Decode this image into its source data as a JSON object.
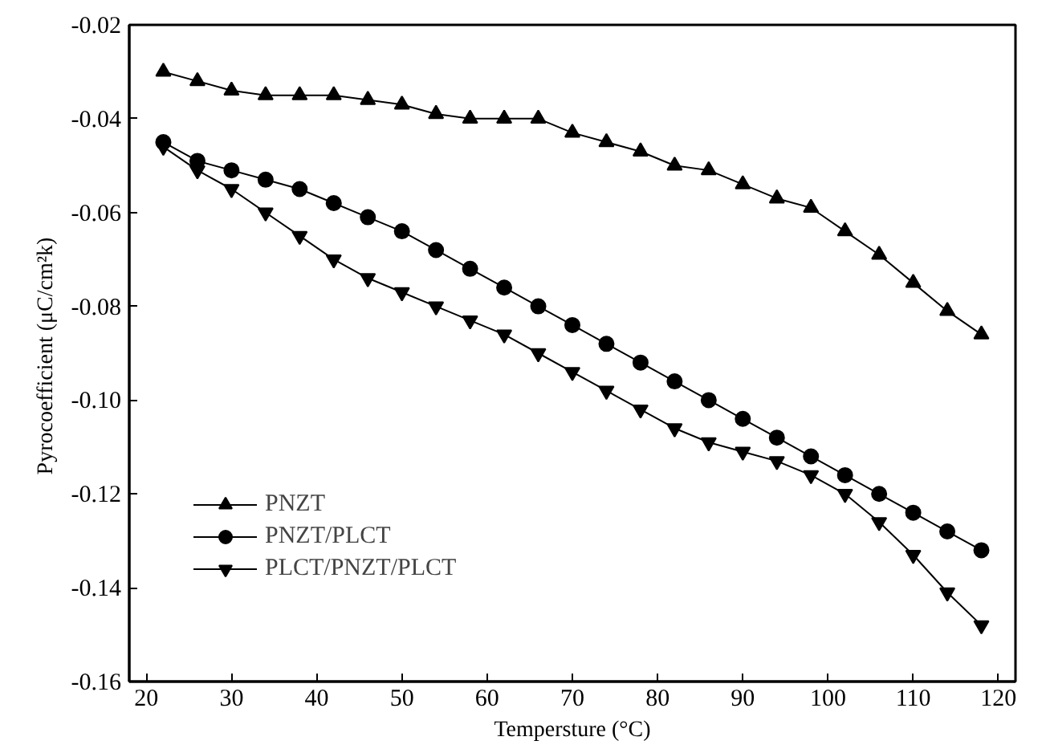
{
  "chart_data": {
    "type": "line",
    "xlabel": "Tempersture (°C)",
    "ylabel": "Pyrocoefficient  (μC/cm²k)",
    "x": [
      22,
      26,
      30,
      34,
      38,
      42,
      46,
      50,
      54,
      58,
      62,
      66,
      70,
      74,
      78,
      82,
      86,
      90,
      94,
      98,
      102,
      106,
      110,
      114,
      118
    ],
    "series": [
      {
        "name": "PNZT",
        "color": "#000000",
        "marker": "triangle",
        "values": [
          -0.03,
          -0.032,
          -0.034,
          -0.035,
          -0.035,
          -0.035,
          -0.036,
          -0.037,
          -0.039,
          -0.04,
          -0.04,
          -0.04,
          -0.043,
          -0.045,
          -0.047,
          -0.05,
          -0.051,
          -0.054,
          -0.057,
          -0.059,
          -0.064,
          -0.069,
          -0.075,
          -0.081,
          -0.086
        ]
      },
      {
        "name": "PNZT/PLCT",
        "color": "#000000",
        "marker": "circle",
        "values": [
          -0.045,
          -0.049,
          -0.051,
          -0.053,
          -0.055,
          -0.058,
          -0.061,
          -0.064,
          -0.068,
          -0.072,
          -0.076,
          -0.08,
          -0.084,
          -0.088,
          -0.092,
          -0.096,
          -0.1,
          -0.104,
          -0.108,
          -0.112,
          -0.116,
          -0.12,
          -0.124,
          -0.128,
          -0.132
        ]
      },
      {
        "name": "PLCT/PNZT/PLCT",
        "color": "#000000",
        "marker": "triangle_down",
        "values": [
          -0.046,
          -0.051,
          -0.055,
          -0.06,
          -0.065,
          -0.07,
          -0.074,
          -0.077,
          -0.08,
          -0.083,
          -0.086,
          -0.09,
          -0.094,
          -0.098,
          -0.102,
          -0.106,
          -0.109,
          -0.111,
          -0.113,
          -0.116,
          -0.12,
          -0.126,
          -0.133,
          -0.141,
          -0.148
        ]
      }
    ],
    "xlim": [
      18,
      122
    ],
    "xticks": [
      20,
      30,
      40,
      50,
      60,
      70,
      80,
      90,
      100,
      110,
      120
    ],
    "ylim": [
      -0.16,
      -0.02
    ],
    "yticks": [
      {
        "value": -0.16,
        "label": "-0.16"
      },
      {
        "value": -0.14,
        "label": "-0.14"
      },
      {
        "value": -0.12,
        "label": "-0.12"
      },
      {
        "value": -0.1,
        "label": "-0.10"
      },
      {
        "value": -0.08,
        "label": "-0.08"
      },
      {
        "value": -0.06,
        "label": "-0.06"
      },
      {
        "value": -0.04,
        "label": "-0.04"
      },
      {
        "value": -0.02,
        "label": "-0.02"
      }
    ],
    "grid": false,
    "legend": "bottom left",
    "line_style": "solid"
  }
}
